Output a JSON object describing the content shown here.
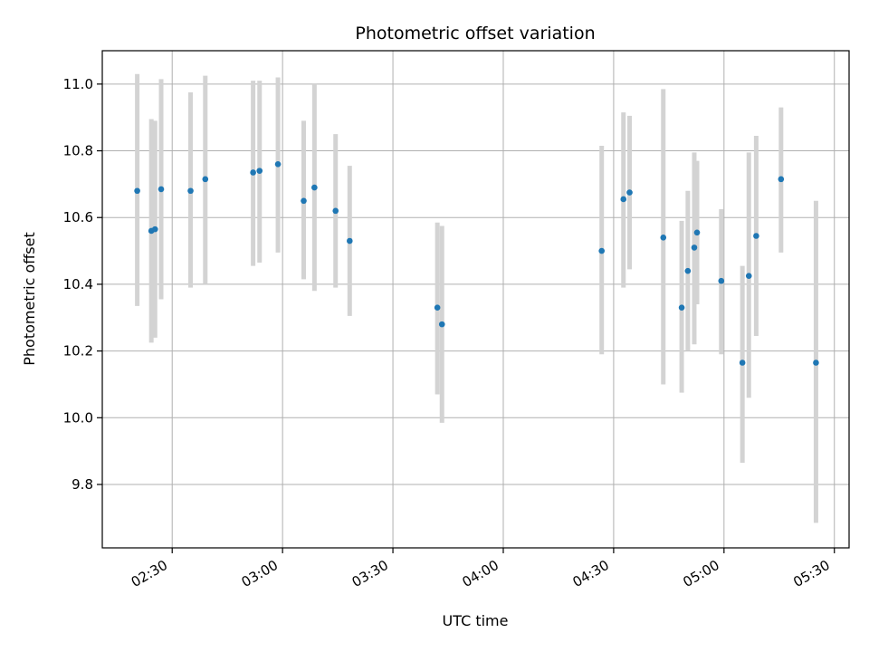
{
  "chart_data": {
    "type": "scatter",
    "title": "Photometric offset variation",
    "xlabel": "UTC time",
    "ylabel": "Photometric offset",
    "x_unit": "UTC time (HH:MM)",
    "xlim": [
      "02:11",
      "05:34"
    ],
    "ylim": [
      9.61,
      11.1
    ],
    "x_ticks": [
      "02:30",
      "03:00",
      "03:30",
      "04:00",
      "04:30",
      "05:00",
      "05:30"
    ],
    "y_ticks": [
      9.8,
      10.0,
      10.2,
      10.4,
      10.6,
      10.8,
      11.0
    ],
    "y_tick_labels": [
      "9.8",
      "10.0",
      "10.2",
      "10.4",
      "10.6",
      "10.8",
      "11.0"
    ],
    "grid": true,
    "legend": "none",
    "colors": {
      "point": "#1f77b4",
      "errorbar": "#d3d3d3",
      "grid": "#b0b0b0"
    },
    "points": [
      {
        "time": "02:20:30",
        "y": 10.68,
        "ylow": 10.335,
        "yhigh": 11.03
      },
      {
        "time": "02:24:20",
        "y": 10.56,
        "ylow": 10.225,
        "yhigh": 10.895
      },
      {
        "time": "02:25:20",
        "y": 10.565,
        "ylow": 10.24,
        "yhigh": 10.89
      },
      {
        "time": "02:27:00",
        "y": 10.685,
        "ylow": 10.355,
        "yhigh": 11.015
      },
      {
        "time": "02:35:00",
        "y": 10.68,
        "ylow": 10.39,
        "yhigh": 10.975
      },
      {
        "time": "02:39:00",
        "y": 10.715,
        "ylow": 10.4,
        "yhigh": 11.025
      },
      {
        "time": "02:52:00",
        "y": 10.735,
        "ylow": 10.455,
        "yhigh": 11.01
      },
      {
        "time": "02:53:45",
        "y": 10.74,
        "ylow": 10.465,
        "yhigh": 11.01
      },
      {
        "time": "02:58:45",
        "y": 10.76,
        "ylow": 10.495,
        "yhigh": 11.02
      },
      {
        "time": "03:05:45",
        "y": 10.65,
        "ylow": 10.415,
        "yhigh": 10.89
      },
      {
        "time": "03:08:40",
        "y": 10.69,
        "ylow": 10.38,
        "yhigh": 11.0
      },
      {
        "time": "03:14:25",
        "y": 10.62,
        "ylow": 10.39,
        "yhigh": 10.85
      },
      {
        "time": "03:18:15",
        "y": 10.53,
        "ylow": 10.305,
        "yhigh": 10.755
      },
      {
        "time": "03:42:05",
        "y": 10.33,
        "ylow": 10.07,
        "yhigh": 10.585
      },
      {
        "time": "03:43:20",
        "y": 10.28,
        "ylow": 9.985,
        "yhigh": 10.575
      },
      {
        "time": "04:26:45",
        "y": 10.5,
        "ylow": 10.19,
        "yhigh": 10.815
      },
      {
        "time": "04:32:40",
        "y": 10.655,
        "ylow": 10.39,
        "yhigh": 10.915
      },
      {
        "time": "04:34:20",
        "y": 10.675,
        "ylow": 10.445,
        "yhigh": 10.905
      },
      {
        "time": "04:43:30",
        "y": 10.54,
        "ylow": 10.1,
        "yhigh": 10.985
      },
      {
        "time": "04:48:30",
        "y": 10.33,
        "ylow": 10.075,
        "yhigh": 10.59
      },
      {
        "time": "04:50:10",
        "y": 10.44,
        "ylow": 10.2,
        "yhigh": 10.68
      },
      {
        "time": "04:51:55",
        "y": 10.51,
        "ylow": 10.22,
        "yhigh": 10.795
      },
      {
        "time": "04:52:40",
        "y": 10.555,
        "ylow": 10.34,
        "yhigh": 10.77
      },
      {
        "time": "04:59:15",
        "y": 10.41,
        "ylow": 10.19,
        "yhigh": 10.625
      },
      {
        "time": "05:05:00",
        "y": 10.165,
        "ylow": 9.865,
        "yhigh": 10.455
      },
      {
        "time": "05:06:45",
        "y": 10.425,
        "ylow": 10.06,
        "yhigh": 10.795
      },
      {
        "time": "05:08:45",
        "y": 10.545,
        "ylow": 10.245,
        "yhigh": 10.845
      },
      {
        "time": "05:15:30",
        "y": 10.715,
        "ylow": 10.495,
        "yhigh": 10.93
      },
      {
        "time": "05:25:00",
        "y": 10.165,
        "ylow": 9.685,
        "yhigh": 10.65
      }
    ]
  }
}
